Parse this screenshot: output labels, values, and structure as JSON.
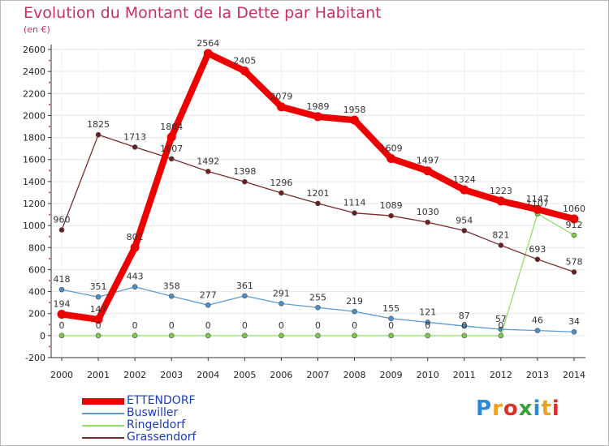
{
  "header": {
    "title": "Evolution du Montant de la Dette par Habitant",
    "subtitle": "(en €)"
  },
  "logo": {
    "text": "Proxiti"
  },
  "colors": {
    "title": "#c8306a",
    "axis": "#333333",
    "grid": "#e6e6e6",
    "legend_text": "#1a3db8"
  },
  "chart_data": {
    "type": "line",
    "title": "Evolution du Montant de la Dette par Habitant",
    "subtitle": "(en €)",
    "xlabel": "",
    "ylabel": "",
    "x": [
      "2000",
      "2001",
      "2002",
      "2003",
      "2004",
      "2005",
      "2006",
      "2007",
      "2008",
      "2009",
      "2010",
      "2011",
      "2012",
      "2013",
      "2014"
    ],
    "ylim": [
      -200,
      2600
    ],
    "yticks": [
      -200,
      0,
      200,
      400,
      600,
      800,
      1000,
      1200,
      1400,
      1600,
      1800,
      2000,
      2200,
      2400,
      2600
    ],
    "grid": true,
    "legend_position": "bottom-left",
    "series": [
      {
        "name": "ETTENDORF",
        "color": "#ee0000",
        "marker_color": "#ee0000",
        "thick": true,
        "values": [
          194,
          147,
          801,
          1804,
          2564,
          2405,
          2079,
          1989,
          1958,
          1609,
          1497,
          1324,
          1223,
          1147,
          1060
        ]
      },
      {
        "name": "Buswiller",
        "color": "#5b9bd5",
        "marker_color": "#4a8cc8",
        "thick": false,
        "values": [
          418,
          351,
          443,
          358,
          277,
          361,
          291,
          255,
          219,
          155,
          121,
          87,
          57,
          46,
          34
        ]
      },
      {
        "name": "Ringeldorf",
        "color": "#8fdf6a",
        "marker_color": "#7acb45",
        "thick": false,
        "values": [
          0,
          0,
          0,
          0,
          0,
          0,
          0,
          0,
          0,
          0,
          0,
          0,
          0,
          1107,
          912
        ]
      },
      {
        "name": "Grassendorf",
        "color": "#7a2a2a",
        "marker_color": "#6a1e1e",
        "thick": false,
        "values": [
          960,
          1825,
          1713,
          1607,
          1492,
          1398,
          1296,
          1201,
          1114,
          1089,
          1030,
          954,
          821,
          693,
          578
        ]
      }
    ]
  }
}
